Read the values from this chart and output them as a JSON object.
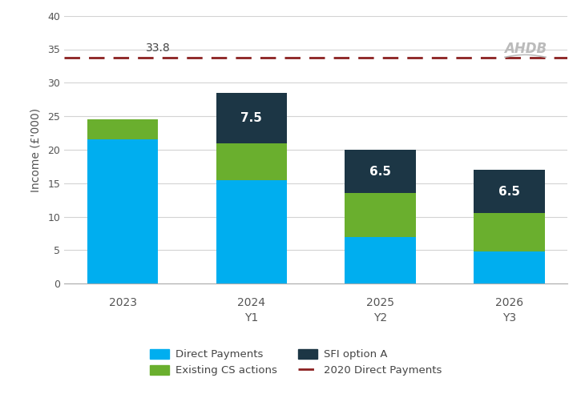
{
  "x_labels_line1": [
    "2023",
    "2024",
    "2025",
    "2026"
  ],
  "x_labels_line2": [
    "",
    "Y1",
    "Y2",
    "Y3"
  ],
  "direct_payments": [
    21.5,
    15.5,
    7.0,
    4.8
  ],
  "cs_actions": [
    3.0,
    5.5,
    6.5,
    5.7
  ],
  "sfi_option_a": [
    0.0,
    7.5,
    6.5,
    6.5
  ],
  "sfi_labels": [
    "",
    "7.5",
    "6.5",
    "6.5"
  ],
  "dashed_line_value": 33.8,
  "dashed_line_label": "33.8",
  "color_direct": "#00AEEF",
  "color_cs": "#6AAF2E",
  "color_sfi": "#1C3645",
  "color_dashed": "#8B2020",
  "ylabel": "Income (£'000)",
  "ylim": [
    0,
    40
  ],
  "yticks": [
    0,
    5,
    10,
    15,
    20,
    25,
    30,
    35,
    40
  ],
  "bar_width": 0.55,
  "legend_labels": [
    "Direct Payments",
    "Existing CS actions",
    "SFI option A",
    "2020 Direct Payments"
  ],
  "background_color": "#FFFFFF",
  "grid_color": "#D3D3D3"
}
